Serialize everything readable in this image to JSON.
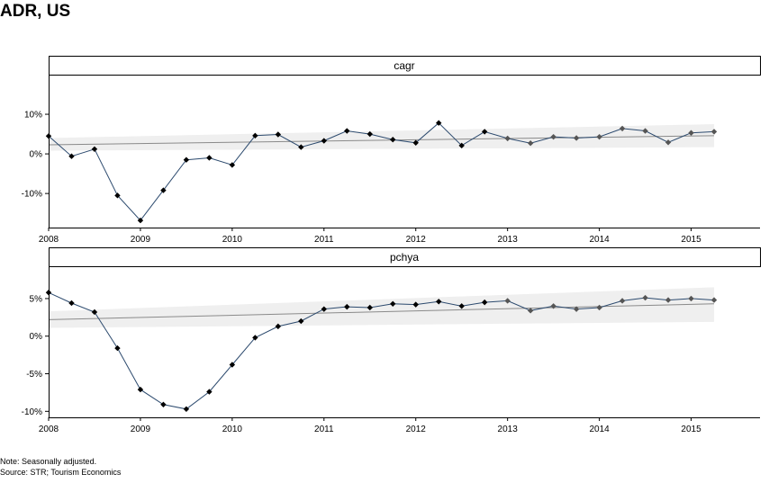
{
  "title": "ADR, US",
  "note": "Note: Seasonally adjusted.",
  "source": "Source: STR; Tourism Economics",
  "colors": {
    "line": "#2c4a6e",
    "point": "#000000",
    "trend": "#8a8a8a",
    "band": "#efefef",
    "axis": "#000000"
  },
  "chart_data": [
    {
      "type": "line",
      "facet": "cagr",
      "x": [
        2008.0,
        2008.25,
        2008.5,
        2008.75,
        2009.0,
        2009.25,
        2009.5,
        2009.75,
        2010.0,
        2010.25,
        2010.5,
        2010.75,
        2011.0,
        2011.25,
        2011.5,
        2011.75,
        2012.0,
        2012.25,
        2012.5,
        2012.75,
        2013.0,
        2013.25,
        2013.5,
        2013.75,
        2014.0,
        2014.25,
        2014.5,
        2014.75,
        2015.0,
        2015.25
      ],
      "values": [
        4.5,
        -0.6,
        1.2,
        -10.5,
        -16.8,
        -9.2,
        -1.5,
        -1.0,
        -2.8,
        4.6,
        4.9,
        1.7,
        3.3,
        5.8,
        5.0,
        3.6,
        2.8,
        7.8,
        2.1,
        5.6,
        3.9,
        2.7,
        4.3,
        4.0,
        4.3,
        6.4,
        5.8,
        2.9,
        5.3,
        5.6
      ],
      "xticks": [
        2008,
        2009,
        2010,
        2011,
        2012,
        2013,
        2014,
        2015
      ],
      "xtick_labels": [
        "2008",
        "2009",
        "2010",
        "2011",
        "2012",
        "2013",
        "2014",
        "2015"
      ],
      "yticks": [
        10,
        0,
        -10
      ],
      "ytick_labels": [
        "10%",
        "0%",
        "-10%"
      ],
      "xlim": [
        2008,
        2015.75
      ],
      "ylim": [
        -18.6,
        20
      ],
      "trend": {
        "x": [
          2008,
          2015.25
        ],
        "y": [
          2.3,
          4.6
        ]
      },
      "band": {
        "x": [
          2008,
          2015.25
        ],
        "lower": [
          0.8,
          1.7
        ],
        "upper": [
          4.0,
          7.5
        ]
      },
      "legend": "none"
    },
    {
      "type": "line",
      "facet": "pchya",
      "x": [
        2008.0,
        2008.25,
        2008.5,
        2008.75,
        2009.0,
        2009.25,
        2009.5,
        2009.75,
        2010.0,
        2010.25,
        2010.5,
        2010.75,
        2011.0,
        2011.25,
        2011.5,
        2011.75,
        2012.0,
        2012.25,
        2012.5,
        2012.75,
        2013.0,
        2013.25,
        2013.5,
        2013.75,
        2014.0,
        2014.25,
        2014.5,
        2014.75,
        2015.0,
        2015.25
      ],
      "values": [
        5.8,
        4.4,
        3.2,
        -1.6,
        -7.1,
        -9.1,
        -9.7,
        -7.4,
        -3.8,
        -0.2,
        1.3,
        2.0,
        3.6,
        3.9,
        3.8,
        4.3,
        4.2,
        4.6,
        4.0,
        4.5,
        4.7,
        3.4,
        4.0,
        3.6,
        3.8,
        4.7,
        5.1,
        4.8,
        5.0,
        4.8
      ],
      "xticks": [
        2008,
        2009,
        2010,
        2011,
        2012,
        2013,
        2014,
        2015
      ],
      "xtick_labels": [
        "2008",
        "2009",
        "2010",
        "2011",
        "2012",
        "2013",
        "2014",
        "2015"
      ],
      "yticks": [
        5,
        0,
        -5,
        -10
      ],
      "ytick_labels": [
        "5%",
        "0%",
        "-5%",
        "-10%"
      ],
      "xlim": [
        2008,
        2015.75
      ],
      "ylim": [
        -10.8,
        9.3
      ],
      "trend": {
        "x": [
          2008,
          2015.25
        ],
        "y": [
          2.2,
          4.3
        ]
      },
      "band": {
        "x": [
          2008,
          2015.25
        ],
        "lower": [
          1.1,
          1.9
        ],
        "upper": [
          3.3,
          6.5
        ]
      },
      "legend": "none"
    }
  ]
}
